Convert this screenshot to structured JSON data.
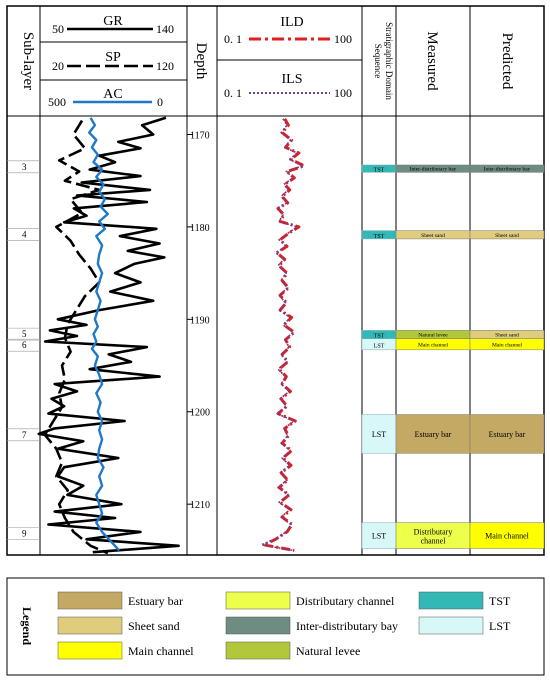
{
  "headers": {
    "sublayer": "Sub-layer",
    "depth": "Depth",
    "sequence_line1": "Sequence",
    "sequence_line2": "Stratigraphic Domain",
    "measured": "Measured",
    "predicted": "Predicted"
  },
  "curves": {
    "gr": {
      "name": "GR",
      "min": "50",
      "max": "140",
      "color": "#000000",
      "style": "solid"
    },
    "sp": {
      "name": "SP",
      "min": "20",
      "max": "120",
      "color": "#000000",
      "style": "dash"
    },
    "ac": {
      "name": "AC",
      "min": "500",
      "max": "0",
      "color": "#1f78c8",
      "style": "solid"
    },
    "ild": {
      "name": "ILD",
      "min": "0. 1",
      "max": "100",
      "color": "#e0201c",
      "style": "dash-dot"
    },
    "ils": {
      "name": "ILS",
      "min": "0. 1",
      "max": "100",
      "color": "#6a3d9a",
      "style": "dot"
    }
  },
  "depth_axis": {
    "min": 1168,
    "max": 1215.5,
    "ticks": [
      "1170",
      "1180",
      "1190",
      "1200",
      "1210"
    ]
  },
  "sublayers": [
    {
      "label": "3",
      "depth": 1173.5
    },
    {
      "label": "4",
      "depth": 1180.8
    },
    {
      "label": "5",
      "depth": 1191.6
    },
    {
      "label": "6",
      "depth": 1192.8
    },
    {
      "label": "7",
      "depth": 1202.5
    },
    {
      "label": "9",
      "depth": 1213.2
    }
  ],
  "intervals": [
    {
      "top": 1173.3,
      "bottom": 1174.1,
      "sequence": "TST",
      "measured": "Inter-distributary bay",
      "predicted": "Inter-distributary bay",
      "m_face": "inter_bay",
      "p_face": "inter_bay"
    },
    {
      "top": 1180.4,
      "bottom": 1181.3,
      "sequence": "TST",
      "measured": "Sheet sand",
      "predicted": "Sheet sand",
      "m_face": "sheet_sand",
      "p_face": "sheet_sand"
    },
    {
      "top": 1191.2,
      "bottom": 1192.1,
      "sequence": "TST",
      "measured": "Natural levee",
      "predicted": "Sheet sand",
      "m_face": "natural_levee",
      "p_face": "sheet_sand"
    },
    {
      "top": 1192.1,
      "bottom": 1193.3,
      "sequence": "LST",
      "measured": "Main channel",
      "predicted": "Main channel",
      "m_face": "main_channel",
      "p_face": "main_channel"
    },
    {
      "top": 1200.3,
      "bottom": 1204.5,
      "sequence": "LST",
      "measured": "Estuary bar",
      "predicted": "Estuary bar",
      "m_face": "estuary_bar",
      "p_face": "estuary_bar"
    },
    {
      "top": 1212.0,
      "bottom": 1214.8,
      "sequence": "LST",
      "measured": "Distributary channel",
      "predicted": "Main channel",
      "m_face": "distributary_channel",
      "p_face": "main_channel"
    }
  ],
  "facies_colors": {
    "estuary_bar": "#c3a963",
    "sheet_sand": "#dfcc7c",
    "main_channel": "#ffff00",
    "distributary_channel": "#ecff4a",
    "inter_bay": "#6f8c80",
    "natural_levee": "#b2c83a",
    "TST": "#33b8b6",
    "LST": "#d8f7f7"
  },
  "legend": {
    "title": "Legend",
    "items": [
      {
        "label": "Estuary bar",
        "face": "estuary_bar"
      },
      {
        "label": "Sheet sand",
        "face": "sheet_sand"
      },
      {
        "label": "Main channel",
        "face": "main_channel"
      },
      {
        "label": "Distributary channel",
        "face": "distributary_channel"
      },
      {
        "label": "Inter-distributary bay",
        "face": "inter_bay"
      },
      {
        "label": "Natural levee",
        "face": "natural_levee"
      },
      {
        "label": "TST",
        "face": "TST"
      },
      {
        "label": "LST",
        "face": "LST"
      }
    ]
  },
  "chart_data": {
    "type": "line",
    "y_axis": "Depth",
    "ylim": [
      1168,
      1215.5
    ],
    "series": [
      {
        "name": "GR",
        "range": [
          50,
          140
        ],
        "depths": [
          1168.2,
          1169,
          1170,
          1170.8,
          1171.5,
          1172.3,
          1173,
          1173.8,
          1174.5,
          1175.2,
          1176,
          1176.6,
          1177.3,
          1178,
          1178.8,
          1179.5,
          1180.2,
          1181,
          1181.8,
          1182.6,
          1183.3,
          1184,
          1185,
          1186,
          1187,
          1188,
          1189,
          1190,
          1190.6,
          1191.2,
          1191.8,
          1192.4,
          1193,
          1193.8,
          1194.6,
          1195.4,
          1196.2,
          1197,
          1197.8,
          1198.6,
          1199.4,
          1200.2,
          1201,
          1201.8,
          1202.4,
          1203.2,
          1204,
          1205,
          1206,
          1207,
          1208,
          1209,
          1210,
          1210.8,
          1211.5,
          1212.2,
          1213,
          1213.8,
          1214.5,
          1215.2
        ],
        "values": [
          128,
          113,
          120,
          98,
          112,
          86,
          96,
          80,
          112,
          75,
          118,
          72,
          116,
          70,
          78,
          64,
          122,
          99,
          124,
          104,
          127,
          108,
          96,
          112,
          93,
          120,
          86,
          60,
          78,
          55,
          72,
          52,
          116,
          92,
          106,
          80,
          124,
          58,
          72,
          56,
          64,
          54,
          102,
          58,
          48,
          76,
          60,
          98,
          64,
          60,
          76,
          66,
          100,
          58,
          96,
          54,
          112,
          78,
          136,
          82
        ]
      },
      {
        "name": "SP",
        "range": [
          20,
          120
        ],
        "depths": [
          1168.5,
          1170,
          1171.5,
          1172.8,
          1174,
          1175,
          1176,
          1177,
          1178.5,
          1180,
          1181.5,
          1183,
          1184.5,
          1186,
          1187.5,
          1189,
          1190.5,
          1192,
          1193.5,
          1195,
          1196.5,
          1198,
          1199.5,
          1201,
          1202.5,
          1204,
          1205.5,
          1207,
          1208.5,
          1210,
          1211.5,
          1213,
          1214.5,
          1215.3
        ],
        "values": [
          48,
          42,
          50,
          32,
          46,
          36,
          60,
          40,
          48,
          30,
          40,
          46,
          54,
          60,
          50,
          44,
          38,
          36,
          40,
          34,
          36,
          32,
          34,
          28,
          22,
          30,
          34,
          30,
          38,
          32,
          36,
          42,
          54,
          66
        ]
      },
      {
        "name": "AC",
        "range": [
          500,
          0
        ],
        "depths": [
          1168.2,
          1169,
          1169.8,
          1170.6,
          1171.4,
          1172.2,
          1173,
          1173.8,
          1174.6,
          1175.4,
          1176.2,
          1177,
          1177.8,
          1178.6,
          1179.4,
          1180.2,
          1181,
          1182,
          1183,
          1184,
          1185,
          1186,
          1187,
          1188,
          1189,
          1190,
          1190.8,
          1191.6,
          1192.4,
          1193.2,
          1194,
          1195,
          1196,
          1197,
          1198,
          1199,
          1200,
          1201,
          1202,
          1203,
          1204,
          1205,
          1206,
          1207,
          1208,
          1209,
          1210,
          1211,
          1212,
          1213,
          1214,
          1215
        ],
        "values": [
          330,
          315,
          335,
          310,
          325,
          305,
          320,
          290,
          310,
          285,
          300,
          280,
          295,
          270,
          300,
          280,
          310,
          290,
          300,
          305,
          290,
          300,
          310,
          295,
          305,
          315,
          305,
          320,
          310,
          325,
          305,
          315,
          300,
          290,
          310,
          295,
          305,
          290,
          300,
          290,
          300,
          305,
          285,
          300,
          290,
          310,
          300,
          290,
          310,
          290,
          260,
          230
        ]
      },
      {
        "name": "ILD",
        "range": [
          0.1,
          100
        ],
        "log": true,
        "depths": [
          1168.3,
          1169,
          1169.8,
          1170.6,
          1171.4,
          1172,
          1172.7,
          1173.4,
          1174,
          1174.7,
          1175.4,
          1176,
          1176.7,
          1177.4,
          1178,
          1178.7,
          1179.4,
          1180,
          1180.7,
          1181.4,
          1182.1,
          1182.8,
          1183.5,
          1184.2,
          1185,
          1185.8,
          1186.6,
          1187.4,
          1188.2,
          1189,
          1189.8,
          1190.6,
          1191.4,
          1192.2,
          1193,
          1193.8,
          1194.6,
          1195.4,
          1196.2,
          1197,
          1197.8,
          1198.6,
          1199.4,
          1200.2,
          1201,
          1201.8,
          1202.6,
          1203.4,
          1204.2,
          1205,
          1205.8,
          1206.6,
          1207.4,
          1208.2,
          1209,
          1209.8,
          1210.6,
          1211.4,
          1212.2,
          1213,
          1213.8,
          1214.4,
          1215
        ],
        "values": [
          2.5,
          3.0,
          2.2,
          3.5,
          2.6,
          5.0,
          3.4,
          6.5,
          2.8,
          4.0,
          2.5,
          3.2,
          2.2,
          2.9,
          1.8,
          2.4,
          2.0,
          5.0,
          3.0,
          2.0,
          2.8,
          1.7,
          2.5,
          1.9,
          2.8,
          2.2,
          3.0,
          2.0,
          2.7,
          2.0,
          3.5,
          2.4,
          4.0,
          2.6,
          3.2,
          2.2,
          2.9,
          1.9,
          2.7,
          2.2,
          3.3,
          2.1,
          2.8,
          1.8,
          4.2,
          2.5,
          3.0,
          2.2,
          3.5,
          2.3,
          3.4,
          2.1,
          2.9,
          1.9,
          3.1,
          2.0,
          3.4,
          2.2,
          3.6,
          2.8,
          1.6,
          0.9,
          4.0
        ]
      },
      {
        "name": "ILS",
        "range": [
          0.1,
          100
        ],
        "log": true,
        "depths": [
          1168.3,
          1169,
          1169.8,
          1170.6,
          1171.4,
          1172,
          1172.7,
          1173.4,
          1174,
          1174.7,
          1175.4,
          1176,
          1176.7,
          1177.4,
          1178,
          1178.7,
          1179.4,
          1180,
          1180.7,
          1181.4,
          1182.1,
          1182.8,
          1183.5,
          1184.2,
          1185,
          1185.8,
          1186.6,
          1187.4,
          1188.2,
          1189,
          1189.8,
          1190.6,
          1191.4,
          1192.2,
          1193,
          1193.8,
          1194.6,
          1195.4,
          1196.2,
          1197,
          1197.8,
          1198.6,
          1199.4,
          1200.2,
          1201,
          1201.8,
          1202.6,
          1203.4,
          1204.2,
          1205,
          1205.8,
          1206.6,
          1207.4,
          1208.2,
          1209,
          1209.8,
          1210.6,
          1211.4,
          1212.2,
          1213,
          1213.8,
          1214.4,
          1215
        ],
        "values": [
          2.3,
          2.8,
          2.1,
          3.3,
          2.5,
          4.6,
          3.2,
          6.0,
          2.7,
          3.8,
          2.4,
          3.0,
          2.1,
          2.8,
          1.7,
          2.3,
          1.9,
          4.6,
          2.9,
          1.9,
          2.7,
          1.6,
          2.4,
          1.8,
          2.7,
          2.1,
          2.9,
          1.9,
          2.6,
          1.9,
          3.3,
          2.3,
          3.8,
          2.5,
          3.1,
          2.1,
          2.8,
          1.8,
          2.6,
          2.1,
          3.1,
          2.0,
          2.7,
          1.7,
          4.0,
          2.4,
          2.9,
          2.1,
          3.3,
          2.2,
          3.2,
          2.0,
          2.8,
          1.8,
          3.0,
          1.9,
          3.2,
          2.1,
          3.4,
          2.7,
          1.5,
          0.8,
          3.8
        ]
      }
    ]
  }
}
